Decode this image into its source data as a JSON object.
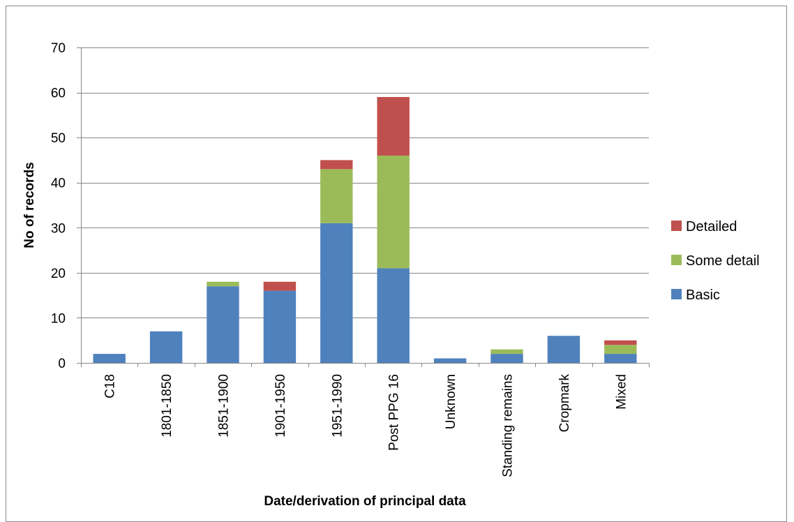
{
  "chart_data": {
    "type": "bar",
    "stacked": true,
    "title": "",
    "xlabel": "Date/derivation of principal data",
    "ylabel": "No of records",
    "ylim": [
      0,
      70
    ],
    "yticks": [
      0,
      10,
      20,
      30,
      40,
      50,
      60,
      70
    ],
    "grid": true,
    "legend_position": "right",
    "categories": [
      "C18",
      "1801-1850",
      "1851-1900",
      "1901-1950",
      "1951-1990",
      "Post PPG 16",
      "Unknown",
      "Standing remains",
      "Cropmark",
      "Mixed"
    ],
    "series": [
      {
        "name": "Basic",
        "color": "#4F81BD",
        "values": [
          2,
          7,
          17,
          16,
          31,
          21,
          1,
          2,
          6,
          2
        ]
      },
      {
        "name": "Some detail",
        "color": "#9BBB59",
        "values": [
          0,
          0,
          1,
          0,
          12,
          25,
          0,
          1,
          0,
          2
        ]
      },
      {
        "name": "Detailed",
        "color": "#C0504D",
        "values": [
          0,
          0,
          0,
          2,
          2,
          13,
          0,
          0,
          0,
          1
        ]
      }
    ]
  }
}
